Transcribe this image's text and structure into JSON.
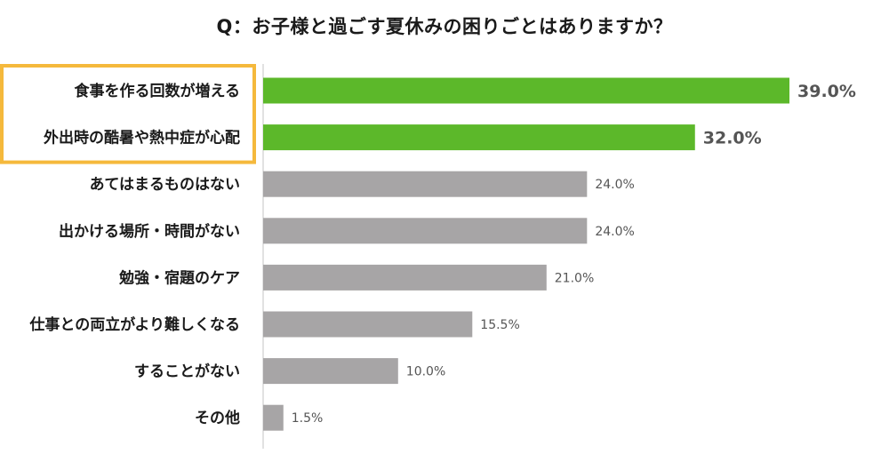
{
  "chart_data": {
    "type": "bar",
    "orientation": "horizontal",
    "title": "Q：お子様と過ごす夏休みの困りごとはありますか？",
    "categories": [
      "食事を作る回数が増える",
      "外出時の酷暑や熱中症が心配",
      "あてはまるものはない",
      "出かける場所・時間がない",
      "勉強・宿題のケア",
      "仕事との両立がより難しくなる",
      "することがない",
      "その他"
    ],
    "values": [
      39.0,
      32.0,
      24.0,
      24.0,
      21.0,
      15.5,
      10.0,
      1.5
    ],
    "value_labels": [
      "39.0%",
      "32.0%",
      "24.0%",
      "24.0%",
      "21.0%",
      "15.5%",
      "10.0%",
      "1.5%"
    ],
    "highlighted": [
      true,
      true,
      false,
      false,
      false,
      false,
      false,
      false
    ],
    "xlim": [
      0,
      45
    ],
    "grid": false,
    "colors": {
      "highlight_bar": "#5cb82a",
      "highlight_text": "#4e9a26",
      "normal_bar": "#a7a5a6",
      "normal_text": "#555555",
      "highlight_box": "#f5b93c",
      "axis": "#d8d8d8"
    }
  }
}
